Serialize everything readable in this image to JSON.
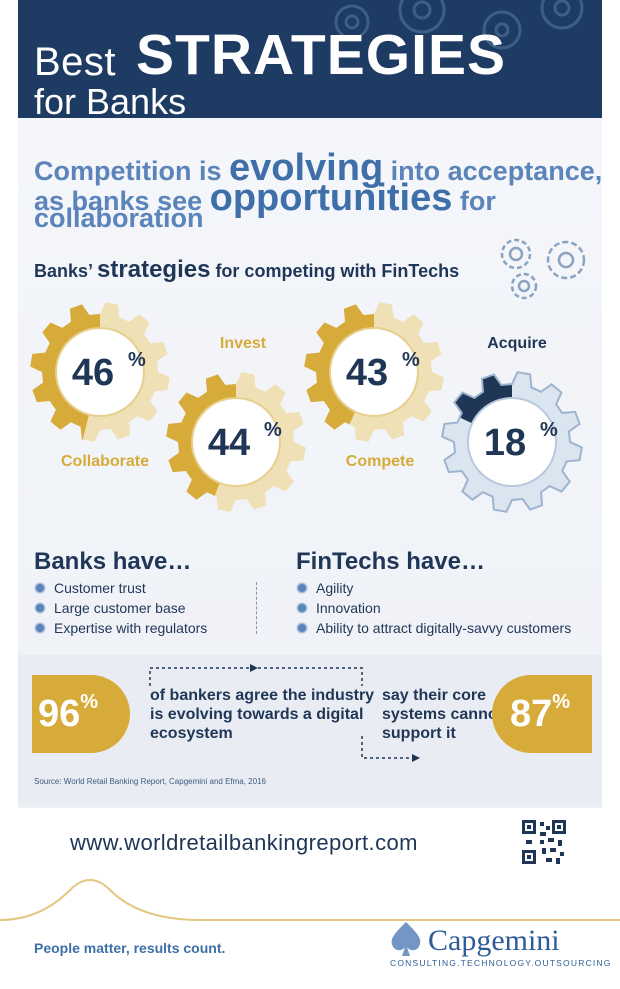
{
  "header": {
    "title_best": "Best",
    "title_strategies": "STRATEGIES",
    "title_for_banks": "for Banks"
  },
  "headline": {
    "line1_a": "Competition is ",
    "line1_big": "evolving",
    "line1_b": " into acceptance,",
    "line2_a": "as banks see ",
    "line2_big": "opportunities",
    "line2_b": " for",
    "line3": "collaboration"
  },
  "section_title": {
    "part1": "Banks’ ",
    "emph": "strategies",
    "part2": " for competing with FinTechs"
  },
  "chart_data": {
    "type": "bar",
    "categories": [
      "Collaborate",
      "Invest",
      "Compete",
      "Acquire"
    ],
    "values": [
      46,
      44,
      43,
      18
    ],
    "unit": "%",
    "title": "Banks’ strategies for competing with FinTechs"
  },
  "gear_labels": {
    "collaborate": "Collaborate",
    "invest": "Invest",
    "compete": "Compete",
    "acquire": "Acquire",
    "v46": "46",
    "v44": "44",
    "v43": "43",
    "v18": "18",
    "pct": "%"
  },
  "banks_have": {
    "title": "Banks have…",
    "items": [
      "Customer trust",
      "Large customer base",
      "Expertise with regulators"
    ]
  },
  "fintechs_have": {
    "title": "FinTechs have…",
    "items": [
      "Agility",
      "Innovation",
      "Ability to attract digitally-savvy customers"
    ]
  },
  "stats": {
    "left_value": "96",
    "left_unit": "%",
    "left_text_1": "of bankers agree the industry",
    "left_text_2": "is evolving towards a digital",
    "left_text_3": "ecosystem",
    "right_value": "87",
    "right_unit": "%",
    "right_text_1": "say their core",
    "right_text_2": "systems cannot",
    "right_text_3": "support it"
  },
  "source": "Source: World Retail Banking Report, Capgemini and Efma, 2016",
  "url": "www.worldretailbankingreport.com",
  "footer": {
    "tagline": "People matter, results count.",
    "logo": "Capgemini",
    "logo_sub": "CONSULTING.TECHNOLOGY.OUTSOURCING"
  },
  "icons": [
    "gear-icon",
    "qr-code-icon",
    "capgemini-spade-icon"
  ],
  "colors": {
    "navy": "#1d3b63",
    "gold": "#d6ab3a",
    "pale_gold": "#efe0b6",
    "blue_text": "#5a84ba",
    "steel": "#9db4cf"
  }
}
